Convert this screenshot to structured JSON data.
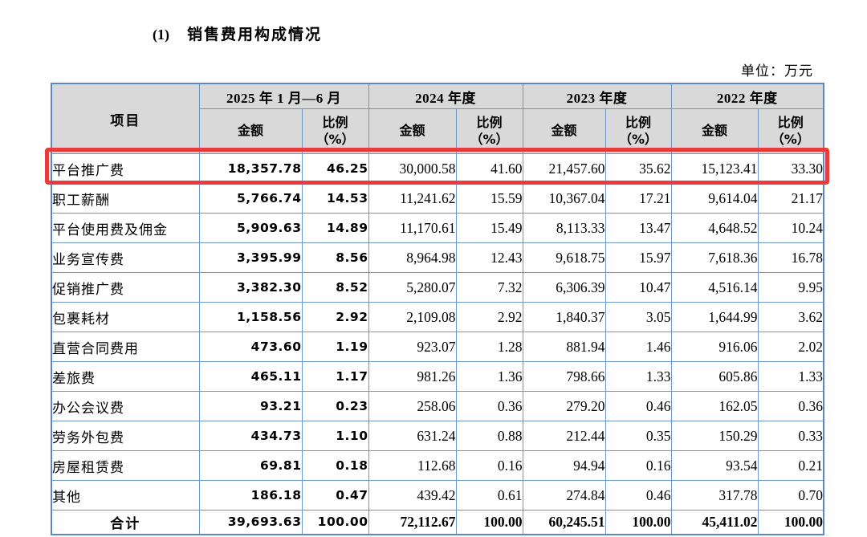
{
  "page": {
    "title_number": "(1)",
    "title": "销售费用构成情况",
    "unit_label": "单位：万元"
  },
  "table": {
    "header": {
      "item_col": "项目",
      "periods": [
        "2025 年 1 月—6 月",
        "2024 年度",
        "2023 年度",
        "2022 年度"
      ],
      "amount_label": "金额",
      "ratio_label_line1": "比例",
      "ratio_label_line2": "（%）"
    },
    "rows": [
      {
        "item": "平台推广费",
        "highlighted": true,
        "values": [
          "18,357.78",
          "46.25",
          "30,000.58",
          "41.60",
          "21,457.60",
          "35.62",
          "15,123.41",
          "33.30"
        ]
      },
      {
        "item": "职工薪酬",
        "highlighted": false,
        "values": [
          "5,766.74",
          "14.53",
          "11,241.62",
          "15.59",
          "10,367.04",
          "17.21",
          "9,614.04",
          "21.17"
        ]
      },
      {
        "item": "平台使用费及佣金",
        "highlighted": false,
        "values": [
          "5,909.63",
          "14.89",
          "11,170.61",
          "15.49",
          "8,113.33",
          "13.47",
          "4,648.52",
          "10.24"
        ]
      },
      {
        "item": "业务宣传费",
        "highlighted": false,
        "values": [
          "3,395.99",
          "8.56",
          "8,964.98",
          "12.43",
          "9,618.75",
          "15.97",
          "7,618.36",
          "16.78"
        ]
      },
      {
        "item": "促销推广费",
        "highlighted": false,
        "values": [
          "3,382.30",
          "8.52",
          "5,280.07",
          "7.32",
          "6,306.39",
          "10.47",
          "4,516.14",
          "9.95"
        ]
      },
      {
        "item": "包裹耗材",
        "highlighted": false,
        "values": [
          "1,158.56",
          "2.92",
          "2,109.08",
          "2.92",
          "1,840.37",
          "3.05",
          "1,644.99",
          "3.62"
        ]
      },
      {
        "item": "直营合同费用",
        "highlighted": false,
        "values": [
          "473.60",
          "1.19",
          "923.07",
          "1.28",
          "881.94",
          "1.46",
          "916.06",
          "2.02"
        ]
      },
      {
        "item": "差旅费",
        "highlighted": false,
        "values": [
          "465.11",
          "1.17",
          "981.26",
          "1.36",
          "798.66",
          "1.33",
          "605.86",
          "1.33"
        ]
      },
      {
        "item": "办公会议费",
        "highlighted": false,
        "values": [
          "93.21",
          "0.23",
          "258.06",
          "0.36",
          "279.20",
          "0.46",
          "162.05",
          "0.36"
        ]
      },
      {
        "item": "劳务外包费",
        "highlighted": false,
        "values": [
          "434.73",
          "1.10",
          "631.24",
          "0.88",
          "212.44",
          "0.35",
          "150.29",
          "0.33"
        ]
      },
      {
        "item": "房屋租赁费",
        "highlighted": false,
        "values": [
          "69.81",
          "0.18",
          "112.68",
          "0.16",
          "94.94",
          "0.16",
          "93.54",
          "0.21"
        ]
      },
      {
        "item": "其他",
        "highlighted": false,
        "values": [
          "186.18",
          "0.47",
          "439.42",
          "0.61",
          "274.84",
          "0.46",
          "317.78",
          "0.70"
        ]
      }
    ],
    "total_row": {
      "item": "合计",
      "values": [
        "39,693.63",
        "100.00",
        "72,112.67",
        "100.00",
        "60,245.51",
        "100.00",
        "45,411.02",
        "100.00"
      ]
    }
  },
  "colors": {
    "table_border": "#6e95c8",
    "table_outer_border": "#5c88c2",
    "header_background": "#d9d9d9",
    "highlight_border": "#e73b3c"
  }
}
